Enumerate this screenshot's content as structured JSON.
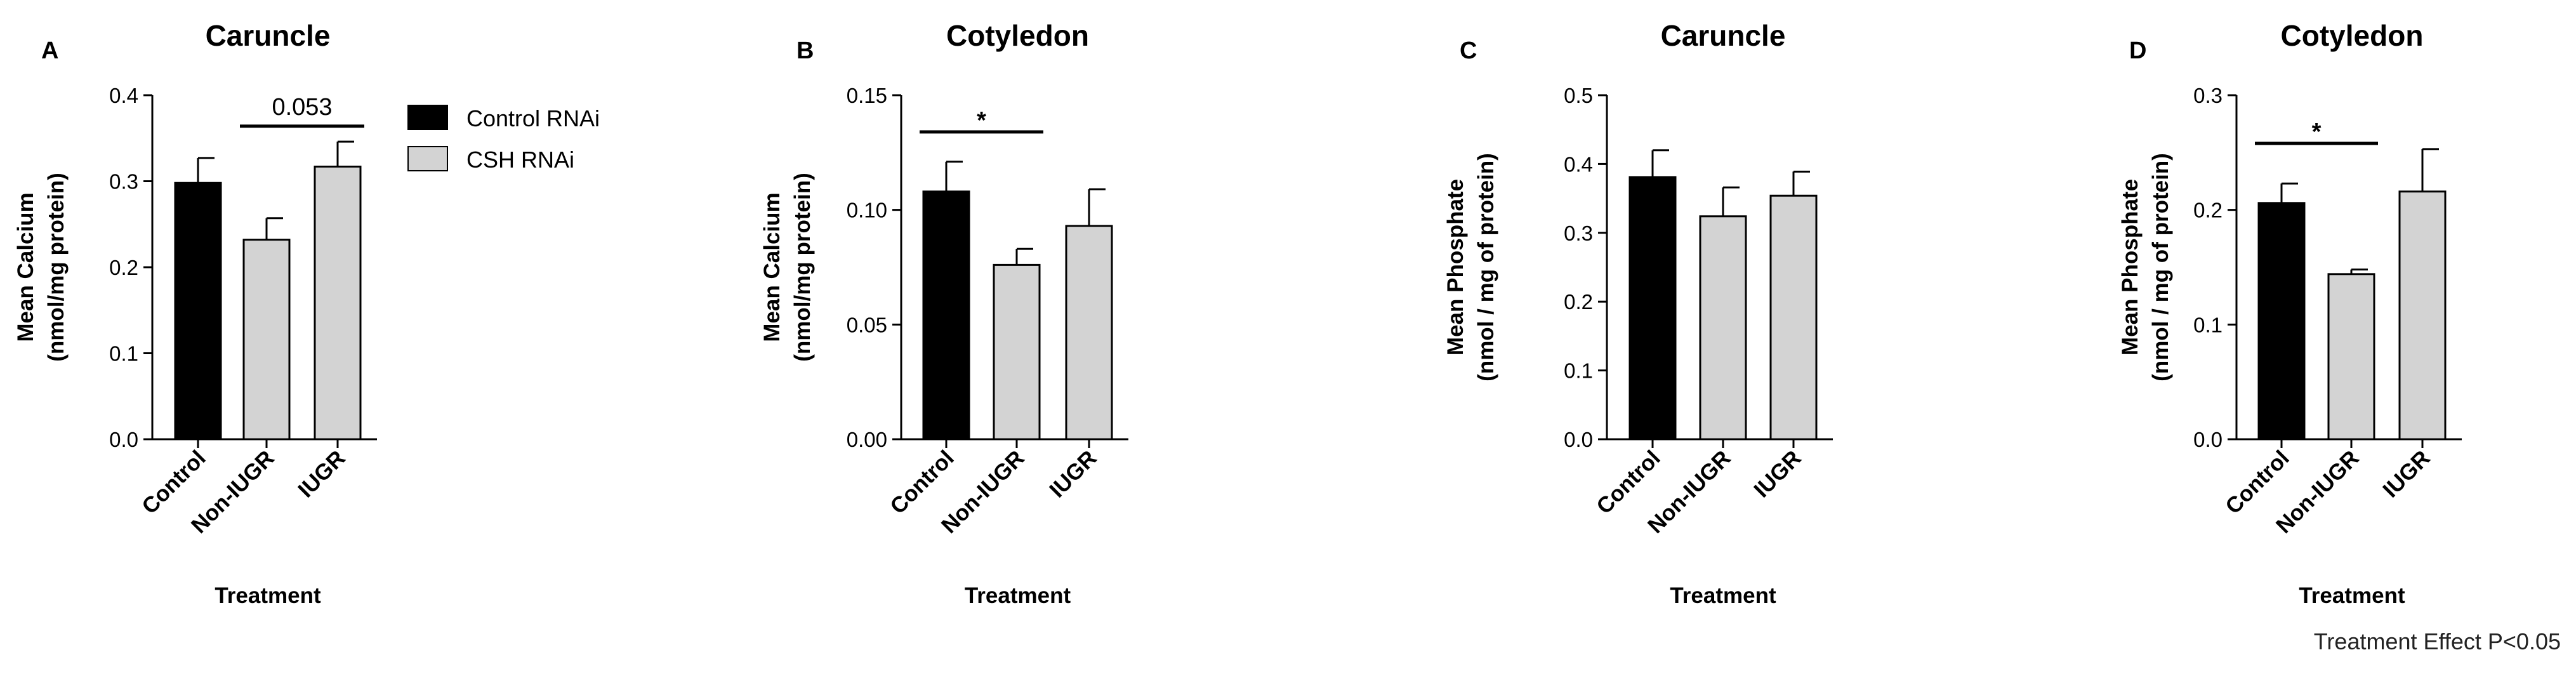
{
  "legend": {
    "items": [
      {
        "label": "Control RNAi",
        "color": "#000000"
      },
      {
        "label": "CSH RNAi",
        "color": "#d3d3d3"
      }
    ]
  },
  "footnote": "Treatment Effect P<0.05",
  "chart_data": [
    {
      "panel": "A",
      "type": "bar",
      "title": "Caruncle",
      "xlabel": "Treatment",
      "ylabel": [
        "Mean Calcium",
        "(nmol/mg protein)"
      ],
      "ylim": [
        0,
        0.4
      ],
      "yticks": [
        0.0,
        0.1,
        0.2,
        0.3,
        0.4
      ],
      "ytick_labels": [
        "0.0",
        "0.1",
        "0.2",
        "0.3",
        "0.4"
      ],
      "categories": [
        "Control",
        "Non-IUGR",
        "IUGR"
      ],
      "values": [
        0.298,
        0.232,
        0.317
      ],
      "errors": [
        0.029,
        0.025,
        0.029
      ],
      "fills": [
        "#000000",
        "#d3d3d3",
        "#d3d3d3"
      ],
      "annotation": {
        "text": "0.053",
        "from": 1,
        "to": 2,
        "y": 0.364
      }
    },
    {
      "panel": "B",
      "type": "bar",
      "title": "Cotyledon",
      "xlabel": "Treatment",
      "ylabel": [
        "Mean Calcium",
        "(nmol/mg protein)"
      ],
      "ylim": [
        0,
        0.15
      ],
      "yticks": [
        0.0,
        0.05,
        0.1,
        0.15
      ],
      "ytick_labels": [
        "0.00",
        "0.05",
        "0.10",
        "0.15"
      ],
      "categories": [
        "Control",
        "Non-IUGR",
        "IUGR"
      ],
      "values": [
        0.108,
        0.076,
        0.093
      ],
      "errors": [
        0.013,
        0.007,
        0.016
      ],
      "fills": [
        "#000000",
        "#d3d3d3",
        "#d3d3d3"
      ],
      "annotation": {
        "text": "*",
        "from": 0,
        "to": 1,
        "y": 0.134
      }
    },
    {
      "panel": "C",
      "type": "bar",
      "title": "Caruncle",
      "xlabel": "Treatment",
      "ylabel": [
        "Mean Phosphate",
        "(nmol / mg of protein)"
      ],
      "ylim": [
        0,
        0.5
      ],
      "yticks": [
        0.0,
        0.1,
        0.2,
        0.3,
        0.4,
        0.5
      ],
      "ytick_labels": [
        "0.0",
        "0.1",
        "0.2",
        "0.3",
        "0.4",
        "0.5"
      ],
      "categories": [
        "Control",
        "Non-IUGR",
        "IUGR"
      ],
      "values": [
        0.381,
        0.324,
        0.354
      ],
      "errors": [
        0.039,
        0.042,
        0.035
      ],
      "fills": [
        "#000000",
        "#d3d3d3",
        "#d3d3d3"
      ],
      "annotation": null
    },
    {
      "panel": "D",
      "type": "bar",
      "title": "Cotyledon",
      "xlabel": "Treatment",
      "ylabel": [
        "Mean Phosphate",
        "(nmol / mg of protein)"
      ],
      "ylim": [
        0,
        0.3
      ],
      "yticks": [
        0.0,
        0.1,
        0.2,
        0.3
      ],
      "ytick_labels": [
        "0.0",
        "0.1",
        "0.2",
        "0.3"
      ],
      "categories": [
        "Control",
        "Non-IUGR",
        "IUGR"
      ],
      "values": [
        0.206,
        0.144,
        0.216
      ],
      "errors": [
        0.017,
        0.004,
        0.037
      ],
      "fills": [
        "#000000",
        "#d3d3d3",
        "#d3d3d3"
      ],
      "annotation": {
        "text": "*",
        "from": 0,
        "to": 1,
        "y": 0.258
      }
    }
  ]
}
